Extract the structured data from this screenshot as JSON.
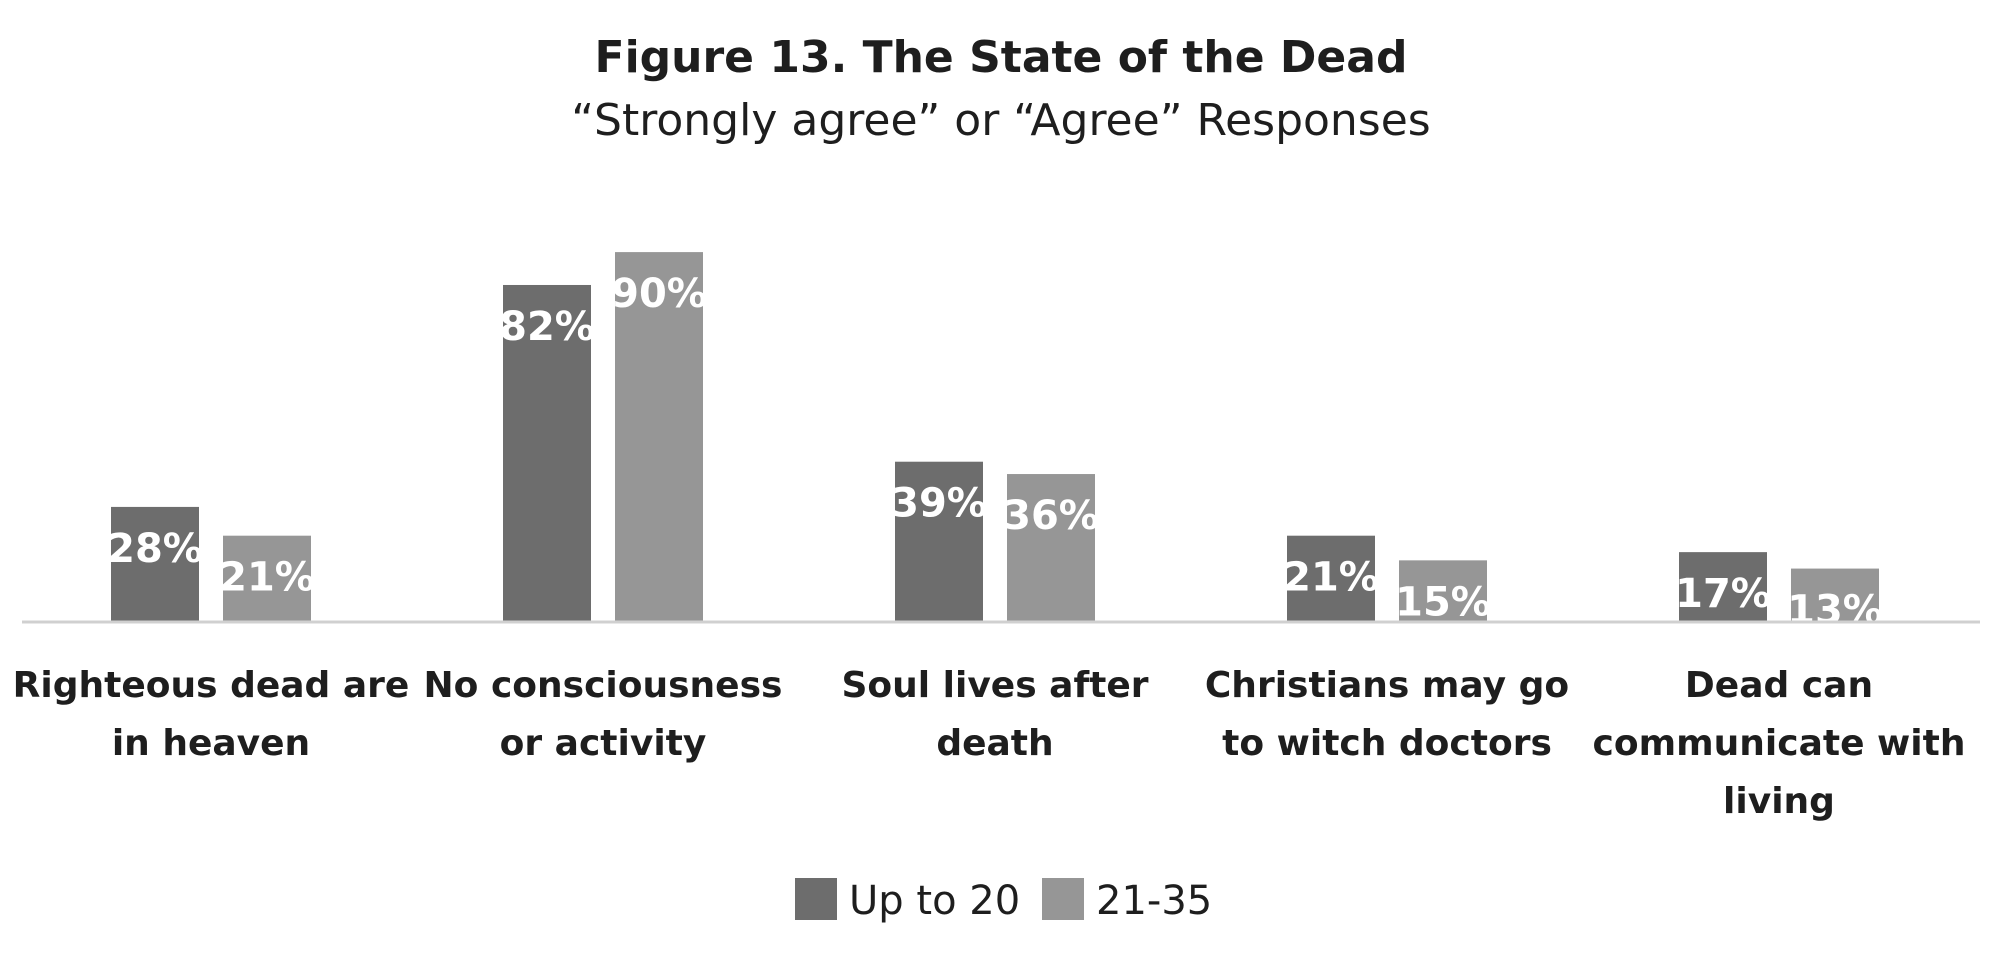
{
  "chart_data": {
    "type": "bar",
    "title": "Figure 13. The State of the Dead",
    "subtitle": "“Strongly agree” or “Agree” Responses",
    "categories": [
      [
        "Righteous dead are",
        "in heaven"
      ],
      [
        "No consciousness",
        "or activity"
      ],
      [
        "Soul lives after",
        "death"
      ],
      [
        "Christians may go",
        "to witch doctors"
      ],
      [
        "Dead can",
        "communicate with",
        "living"
      ]
    ],
    "series": [
      {
        "name": "Up to 20",
        "color": "#6d6d6d",
        "values": [
          28,
          82,
          39,
          21,
          17
        ],
        "labels": [
          "28%",
          "82%",
          "39%",
          "21%",
          "17%"
        ]
      },
      {
        "name": "21-35",
        "color": "#969696",
        "values": [
          21,
          90,
          36,
          15,
          13
        ],
        "labels": [
          "21%",
          "90%",
          "36%",
          "15%",
          "13%"
        ]
      }
    ],
    "ylim": [
      0,
      100
    ],
    "grid": false,
    "legend": "bottom",
    "axis_color": "#d0d0d0"
  }
}
